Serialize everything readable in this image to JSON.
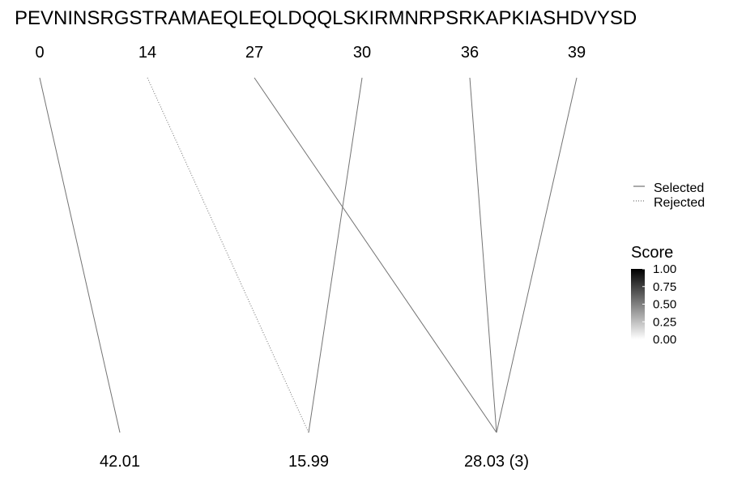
{
  "chart_data": {
    "type": "diagram",
    "sequence": "PEVNINSRGSTRAMAEQLEQLDQQLSKIRMNRPSRKAPKIASHDVYSD",
    "top_positions": [
      "0",
      "14",
      "27",
      "30",
      "36",
      "39"
    ],
    "bottom_masses": [
      "42.01",
      "15.99",
      "28.03 (3)"
    ],
    "connections": [
      {
        "from": "0",
        "to": "42.01",
        "status": "Selected",
        "score": 0.55
      },
      {
        "from": "14",
        "to": "15.99",
        "status": "Rejected",
        "score": 0.55
      },
      {
        "from": "30",
        "to": "15.99",
        "status": "Selected",
        "score": 0.55
      },
      {
        "from": "27",
        "to": "28.03 (3)",
        "status": "Selected",
        "score": 0.55
      },
      {
        "from": "36",
        "to": "28.03 (3)",
        "status": "Selected",
        "score": 0.55
      },
      {
        "from": "39",
        "to": "28.03 (3)",
        "status": "Selected",
        "score": 0.55
      }
    ],
    "legend": {
      "linetype": [
        "Selected",
        "Rejected"
      ],
      "score_title": "Score",
      "score_ticks": [
        "1.00",
        "0.75",
        "0.50",
        "0.25",
        "0.00"
      ],
      "score_range": [
        0,
        1
      ]
    }
  }
}
